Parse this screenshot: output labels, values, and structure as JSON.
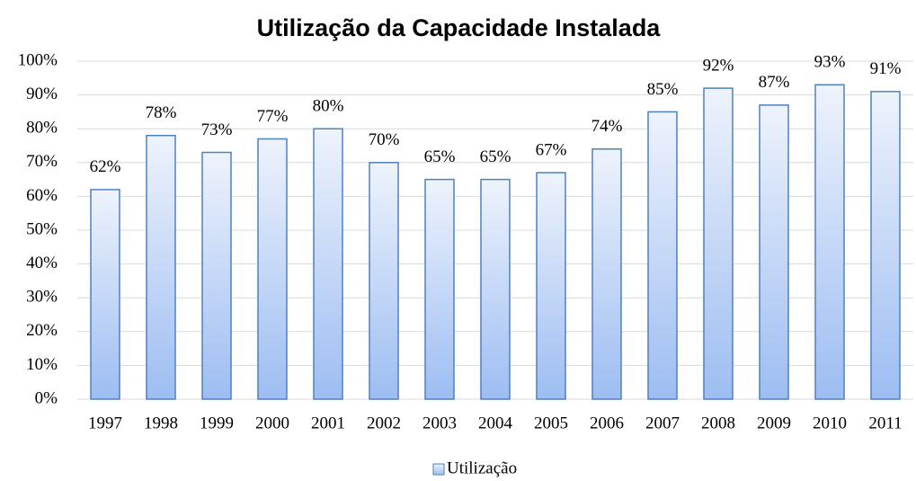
{
  "chart_data": {
    "type": "bar",
    "title": "Utilização da Capacidade Instalada",
    "categories": [
      "1997",
      "1998",
      "1999",
      "2000",
      "2001",
      "2002",
      "2003",
      "2004",
      "2005",
      "2006",
      "2007",
      "2008",
      "2009",
      "2010",
      "2011"
    ],
    "series": [
      {
        "name": "Utilização",
        "color": "#4f81bd",
        "values": [
          62,
          78,
          73,
          77,
          80,
          70,
          65,
          65,
          67,
          74,
          85,
          92,
          87,
          93,
          91
        ],
        "value_labels": [
          "62%",
          "78%",
          "73%",
          "77%",
          "80%",
          "70%",
          "65%",
          "65%",
          "67%",
          "74%",
          "85%",
          "92%",
          "87%",
          "93%",
          "91%"
        ]
      }
    ],
    "ylim": [
      0,
      100
    ],
    "yticks": [
      {
        "value": 0,
        "label": "0%"
      },
      {
        "value": 10,
        "label": "10%"
      },
      {
        "value": 20,
        "label": "20%"
      },
      {
        "value": 30,
        "label": "30%"
      },
      {
        "value": 40,
        "label": "40%"
      },
      {
        "value": 50,
        "label": "50%"
      },
      {
        "value": 60,
        "label": "60%"
      },
      {
        "value": 70,
        "label": "70%"
      },
      {
        "value": 80,
        "label": "80%"
      },
      {
        "value": 90,
        "label": "90%"
      },
      {
        "value": 100,
        "label": "100%"
      }
    ],
    "grid": true,
    "legend": "bottom"
  }
}
